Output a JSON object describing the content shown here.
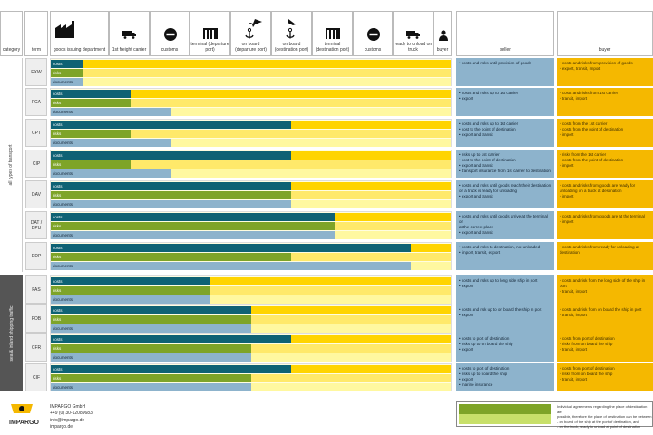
{
  "header": {
    "category": "category",
    "term": "term",
    "steps": [
      {
        "label": "goods issuing department",
        "icon": "factory-icon"
      },
      {
        "label": "1st freight carrier",
        "icon": "truck-icon"
      },
      {
        "label": "customs",
        "icon": "no-entry-icon"
      },
      {
        "label": "terminal (departure port)",
        "icon": "terminal-icon"
      },
      {
        "label": "on board (departure port)",
        "icon": "anchor-plane-icon"
      },
      {
        "label": "on board (destination port)",
        "icon": "anchor-plane-icon"
      },
      {
        "label": "terminal (destination port)",
        "icon": "terminal-icon"
      },
      {
        "label": "customs",
        "icon": "no-entry-icon"
      },
      {
        "label": "ready to unload on truck",
        "icon": "truck-icon"
      },
      {
        "label": "buyer",
        "icon": "person-icon"
      }
    ],
    "seller": "seller",
    "buyer": "buyer"
  },
  "groups": [
    {
      "label": "all types of transport"
    },
    {
      "label": "sea & inland shipping traffic"
    }
  ],
  "bar_labels": {
    "costs": "costs",
    "risks": "risks",
    "documents": "documents"
  },
  "colors": {
    "seller_cost": "#0f6274",
    "seller_risk": "#7ea428",
    "seller_doc": "#8db3cc",
    "buyer_cost": "#ffd400",
    "buyer_risk": "#ffe96a",
    "buyer_doc": "#fff8a0",
    "accent": "#f5b800"
  },
  "rows": [
    {
      "term": "EXW",
      "costs": 0.08,
      "risks": 0.08,
      "docs": 0.08,
      "seller": [
        "• costs and risks until provision of goods"
      ],
      "buyer": [
        "• costs and risks from provision of goods",
        "• export, transit, import"
      ]
    },
    {
      "term": "FCA",
      "costs": 0.2,
      "risks": 0.2,
      "docs": 0.3,
      "seller": [
        "• costs and risks up to 1st carrier",
        "• export"
      ],
      "buyer": [
        "• costs and risks from 1st carrier",
        "• transit, import"
      ]
    },
    {
      "term": "CPT",
      "costs": 0.6,
      "risks": 0.2,
      "docs": 0.3,
      "seller": [
        "• costs and risks up to 1st carrier",
        "• cost to the point of destination",
        "• export and transit"
      ],
      "buyer": [
        "• costs from the 1st carrier",
        "• costs from the point of destination",
        "• import"
      ]
    },
    {
      "term": "CIP",
      "costs": 0.6,
      "risks": 0.2,
      "docs": 0.3,
      "seller": [
        "• risks up to 1st carrier",
        "• cost to the point of destination",
        "• export and transit",
        "• transport insurance from 1st carrier to destination"
      ],
      "buyer": [
        "• risks from the 1st carrier",
        "• costs from the point of destination",
        "• import"
      ]
    },
    {
      "term": "DAV",
      "costs": 0.6,
      "risks": 0.6,
      "docs": 0.6,
      "seller": [
        "• costs and risks until goods reach their destination",
        "  on a truck is ready for unloading",
        "• export and transit"
      ],
      "buyer": [
        "• costs and risks from goods are ready for",
        "  unloading on a truck at destination",
        "• import"
      ]
    },
    {
      "term": "DAT / DPU",
      "costs": 0.71,
      "risks": 0.71,
      "docs": 0.71,
      "seller": [
        "• costs and risks until goods arrive at the terminal or",
        "  at the correct place",
        "• export and transit"
      ],
      "buyer": [
        "• costs and risks from goods are at the terminal",
        "• import"
      ]
    },
    {
      "term": "DDP",
      "costs": 0.9,
      "risks": 0.6,
      "docs": 0.9,
      "seller": [
        "• costs and risks to destination, not unloaded",
        "• import, transit, export"
      ],
      "buyer": [
        "• costs and risks from ready for unloading at",
        "  destination"
      ]
    },
    {
      "term": "FAS",
      "costs": 0.4,
      "risks": 0.4,
      "docs": 0.4,
      "seller": [
        "• costs and risks up to long side ship in port",
        "• export"
      ],
      "buyer": [
        "• costs and risk from the long side of the ship in port",
        "• transit, import"
      ]
    },
    {
      "term": "FOB",
      "costs": 0.5,
      "risks": 0.5,
      "docs": 0.5,
      "seller": [
        "• costs and risk up to on board the ship in port",
        "• export"
      ],
      "buyer": [
        "• costs and risk from on board the ship in port",
        "• transit, import"
      ]
    },
    {
      "term": "CFR",
      "costs": 0.6,
      "risks": 0.5,
      "docs": 0.5,
      "seller": [
        "• costs to port of destination",
        "• risks up to on board the ship",
        "• export"
      ],
      "buyer": [
        "• costs from port of destination",
        "• risks from on board the ship",
        "• transit, import"
      ]
    },
    {
      "term": "CIF",
      "costs": 0.6,
      "risks": 0.5,
      "docs": 0.5,
      "seller": [
        "• costs to port of destination",
        "• risks up to board the ship",
        "• export",
        "• marine insurance"
      ],
      "buyer": [
        "• costs from port of destination",
        "• risks from on board the ship",
        "• transit, import"
      ]
    }
  ],
  "company": {
    "name": "IMPARGO",
    "lines": [
      "IMPARGO GmbH",
      "+49 (0) 30-12089683",
      "info@impargo.de",
      "impargo.de"
    ]
  },
  "legend": {
    "text": [
      "Individual agreements regarding the place of destination are",
      "possible, therefore the place of destination can be between",
      "- on board of the ship at the port of destination, and",
      "- on the truck, ready to unload at point of destination"
    ]
  }
}
